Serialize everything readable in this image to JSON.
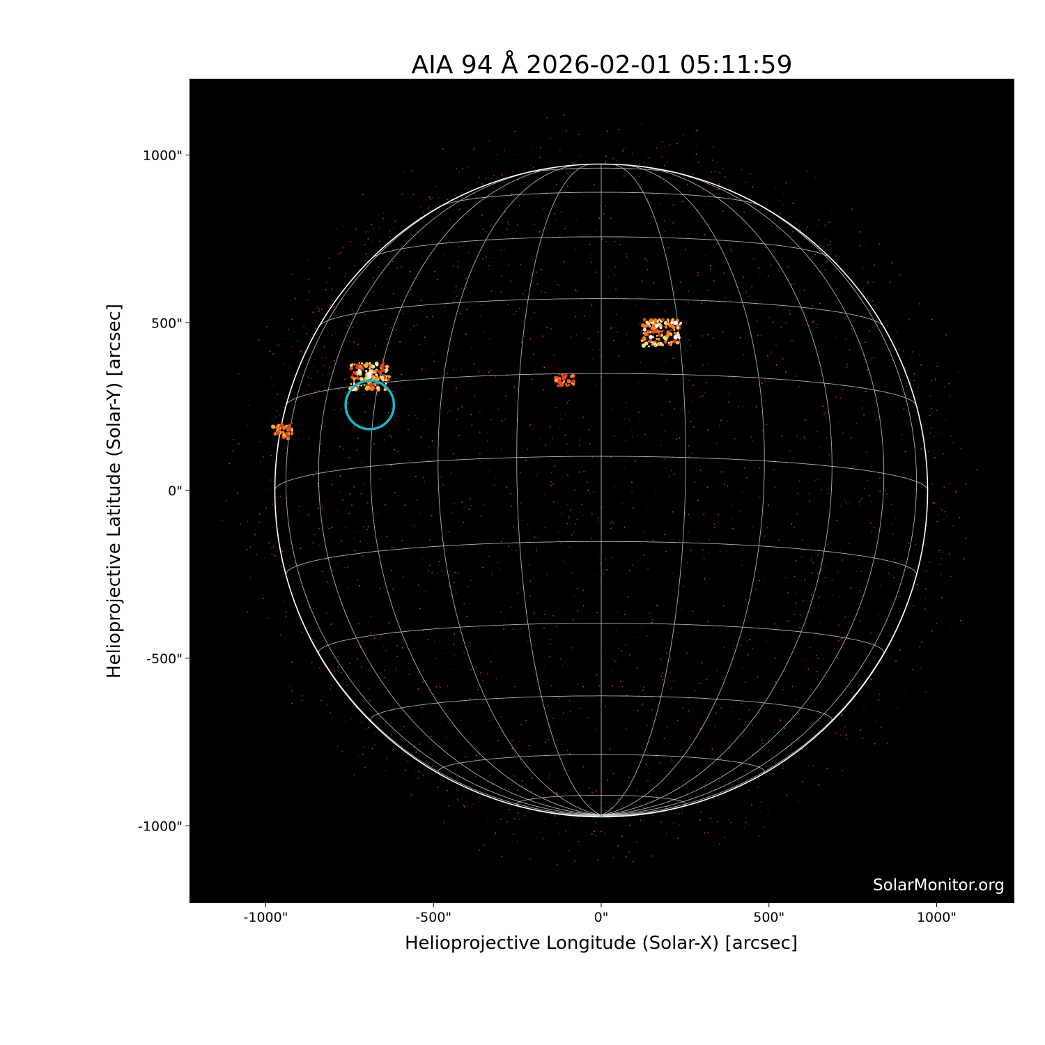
{
  "chart_data": {
    "type": "image",
    "title": "AIA 94 Å 2026-02-01 05:11:59",
    "xlabel": "Helioprojective Longitude (Solar-X) [arcsec]",
    "ylabel": "Helioprojective Latitude (Solar-Y) [arcsec]",
    "xlim": [
      -1230,
      1230
    ],
    "ylim": [
      -1230,
      1230
    ],
    "x_ticks": [
      -1000,
      -500,
      0,
      500,
      1000
    ],
    "y_ticks": [
      -1000,
      -500,
      0,
      500,
      1000
    ],
    "x_tick_labels": [
      "-1000\"",
      "-500\"",
      "0\"",
      "500\"",
      "1000\""
    ],
    "y_tick_labels": [
      "-1000\"",
      "-500\"",
      "0\"",
      "500\"",
      "1000\""
    ],
    "colormap": "sdoaia94",
    "solar_radius_arcsec": 973,
    "grid_spacing_deg": 15,
    "active_regions": [
      {
        "x": 180,
        "y": 470
      },
      {
        "x": -690,
        "y": 340
      },
      {
        "x": -950,
        "y": 175
      },
      {
        "x": -110,
        "y": 330
      }
    ],
    "highlight_circle": {
      "x": -690,
      "y": 255,
      "radius": 72,
      "color": "#17b8c4"
    },
    "watermark": "SolarMonitor.org"
  }
}
